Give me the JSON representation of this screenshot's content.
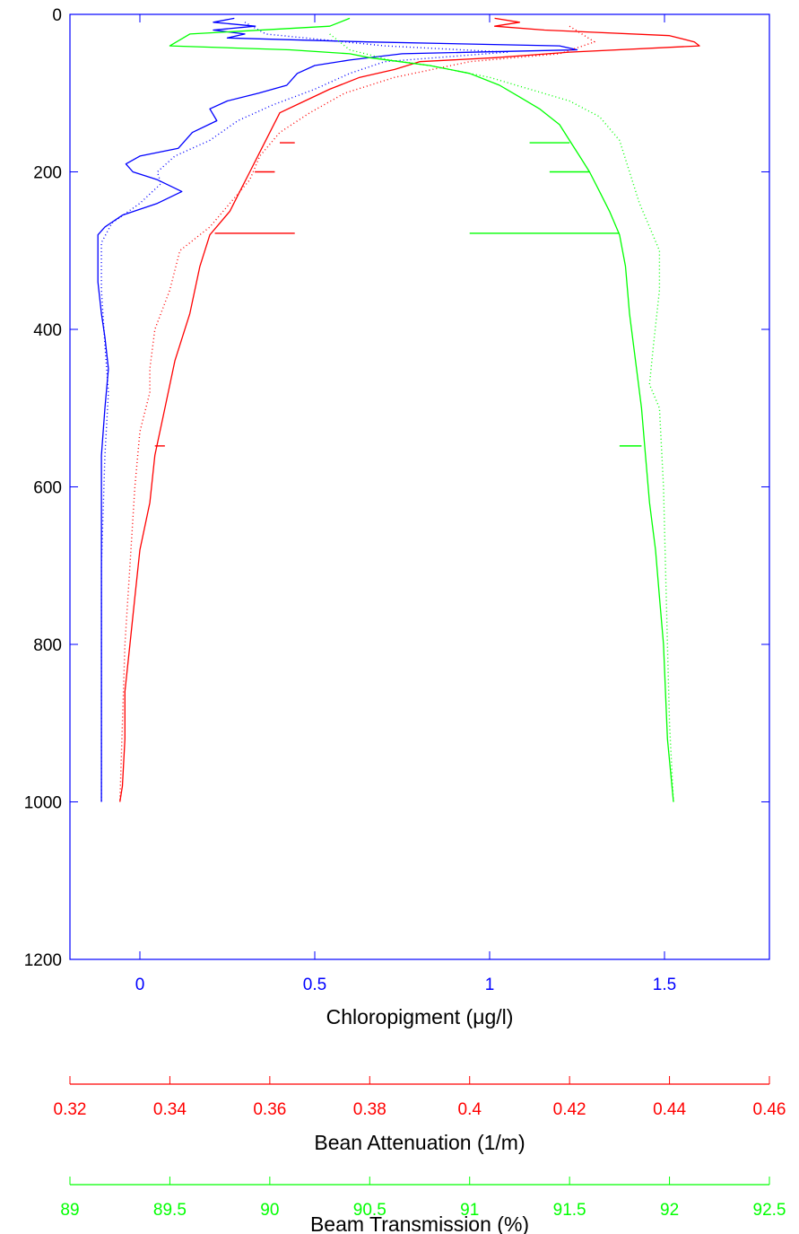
{
  "chart_data": {
    "type": "line",
    "y_axis": {
      "label": "",
      "ticks": [
        0,
        200,
        400,
        600,
        800,
        1000,
        1200
      ],
      "tick_labels": [
        "0",
        "200",
        "400",
        "600",
        "800",
        "1000",
        "1200"
      ],
      "range": [
        0,
        1200
      ],
      "reversed": true
    },
    "x_axes": [
      {
        "id": "chloropigment",
        "title": "Chloropigment (μg/l)",
        "color": "#0000ff",
        "range": [
          -0.2,
          1.8
        ],
        "ticks": [
          0,
          0.5,
          1,
          1.5
        ],
        "tick_labels": [
          "0",
          "0.5",
          "1",
          "1.5"
        ]
      },
      {
        "id": "attenuation",
        "title": "Bean Attenuation (1/m)",
        "color": "#ff0000",
        "range": [
          0.32,
          0.46
        ],
        "ticks": [
          0.32,
          0.34,
          0.36,
          0.38,
          0.4,
          0.42,
          0.44,
          0.46
        ],
        "tick_labels": [
          "0.32",
          "0.34",
          "0.36",
          "0.38",
          "0.4",
          "0.42",
          "0.44",
          "0.46"
        ]
      },
      {
        "id": "transmission",
        "title": "Beam Transmission (%)",
        "color": "#00ff00",
        "range": [
          89,
          92.5
        ],
        "ticks": [
          89,
          89.5,
          90,
          90.5,
          91,
          91.5,
          92,
          92.5
        ],
        "tick_labels": [
          "89",
          "89.5",
          "90",
          "90.5",
          "91",
          "91.5",
          "92",
          "92.5"
        ]
      }
    ],
    "series": [
      {
        "axis": "chloropigment",
        "color": "#0000ff",
        "style": "solid",
        "points": [
          [
            0.27,
            5
          ],
          [
            0.21,
            10
          ],
          [
            0.33,
            15
          ],
          [
            0.21,
            20
          ],
          [
            0.3,
            25
          ],
          [
            0.25,
            30
          ],
          [
            0.65,
            35
          ],
          [
            1.2,
            40
          ],
          [
            1.25,
            45
          ],
          [
            0.75,
            50
          ],
          [
            0.6,
            58
          ],
          [
            0.5,
            65
          ],
          [
            0.45,
            75
          ],
          [
            0.42,
            90
          ],
          [
            0.34,
            100
          ],
          [
            0.25,
            110
          ],
          [
            0.2,
            120
          ],
          [
            0.22,
            135
          ],
          [
            0.15,
            150
          ],
          [
            0.11,
            170
          ],
          [
            0.0,
            180
          ],
          [
            -0.04,
            190
          ],
          [
            -0.02,
            200
          ],
          [
            0.05,
            210
          ],
          [
            0.12,
            225
          ],
          [
            0.05,
            240
          ],
          [
            -0.05,
            255
          ],
          [
            -0.1,
            270
          ],
          [
            -0.12,
            280
          ],
          [
            -0.12,
            300
          ],
          [
            -0.12,
            340
          ],
          [
            -0.11,
            380
          ],
          [
            -0.1,
            410
          ],
          [
            -0.09,
            450
          ],
          [
            -0.1,
            500
          ],
          [
            -0.11,
            560
          ],
          [
            -0.11,
            650
          ],
          [
            -0.11,
            750
          ],
          [
            -0.11,
            850
          ],
          [
            -0.11,
            950
          ],
          [
            -0.11,
            1000
          ]
        ]
      },
      {
        "axis": "chloropigment",
        "color": "#0000ff",
        "style": "dotted",
        "points": [
          [
            0.3,
            10
          ],
          [
            0.36,
            25
          ],
          [
            0.7,
            40
          ],
          [
            1.05,
            48
          ],
          [
            0.7,
            60
          ],
          [
            0.6,
            75
          ],
          [
            0.5,
            95
          ],
          [
            0.38,
            115
          ],
          [
            0.28,
            135
          ],
          [
            0.2,
            160
          ],
          [
            0.1,
            180
          ],
          [
            0.05,
            200
          ],
          [
            0.06,
            215
          ],
          [
            0.0,
            240
          ],
          [
            -0.08,
            265
          ],
          [
            -0.11,
            290
          ],
          [
            -0.11,
            350
          ],
          [
            -0.1,
            420
          ],
          [
            -0.09,
            480
          ],
          [
            -0.1,
            560
          ],
          [
            -0.11,
            700
          ],
          [
            -0.11,
            900
          ],
          [
            -0.11,
            1000
          ]
        ]
      },
      {
        "axis": "attenuation",
        "color": "#ff0000",
        "style": "solid",
        "points": [
          [
            0.405,
            5
          ],
          [
            0.41,
            10
          ],
          [
            0.405,
            15
          ],
          [
            0.415,
            20
          ],
          [
            0.44,
            27
          ],
          [
            0.445,
            35
          ],
          [
            0.446,
            40
          ],
          [
            0.42,
            48
          ],
          [
            0.405,
            55
          ],
          [
            0.39,
            60
          ],
          [
            0.385,
            70
          ],
          [
            0.378,
            80
          ],
          [
            0.372,
            95
          ],
          [
            0.367,
            110
          ],
          [
            0.362,
            125
          ],
          [
            0.36,
            150
          ],
          [
            0.358,
            175
          ],
          [
            0.356,
            200
          ],
          [
            0.354,
            225
          ],
          [
            0.352,
            250
          ],
          [
            0.348,
            280
          ],
          [
            0.346,
            320
          ],
          [
            0.344,
            380
          ],
          [
            0.341,
            440
          ],
          [
            0.339,
            500
          ],
          [
            0.337,
            560
          ],
          [
            0.336,
            620
          ],
          [
            0.334,
            680
          ],
          [
            0.333,
            740
          ],
          [
            0.332,
            800
          ],
          [
            0.331,
            860
          ],
          [
            0.331,
            920
          ],
          [
            0.3305,
            980
          ],
          [
            0.33,
            1000
          ]
        ]
      },
      {
        "axis": "attenuation",
        "color": "#ff0000",
        "style": "dotted",
        "points": [
          [
            0.42,
            15
          ],
          [
            0.425,
            35
          ],
          [
            0.418,
            50
          ],
          [
            0.4,
            60
          ],
          [
            0.385,
            80
          ],
          [
            0.375,
            100
          ],
          [
            0.368,
            125
          ],
          [
            0.362,
            150
          ],
          [
            0.358,
            180
          ],
          [
            0.356,
            210
          ],
          [
            0.352,
            240
          ],
          [
            0.348,
            270
          ],
          [
            0.342,
            300
          ],
          [
            0.34,
            350
          ],
          [
            0.337,
            400
          ],
          [
            0.336,
            450
          ],
          [
            0.336,
            480
          ],
          [
            0.334,
            530
          ],
          [
            0.333,
            600
          ],
          [
            0.332,
            700
          ],
          [
            0.331,
            800
          ],
          [
            0.3305,
            900
          ],
          [
            0.33,
            1000
          ]
        ]
      },
      {
        "axis": "transmission",
        "color": "#00ff00",
        "style": "solid",
        "points": [
          [
            90.4,
            5
          ],
          [
            90.3,
            15
          ],
          [
            89.6,
            25
          ],
          [
            89.5,
            40
          ],
          [
            90.1,
            45
          ],
          [
            90.4,
            50
          ],
          [
            90.5,
            55
          ],
          [
            90.65,
            60
          ],
          [
            90.8,
            65
          ],
          [
            91.0,
            75
          ],
          [
            91.15,
            90
          ],
          [
            91.25,
            105
          ],
          [
            91.35,
            120
          ],
          [
            91.45,
            140
          ],
          [
            91.5,
            160
          ],
          [
            91.55,
            180
          ],
          [
            91.6,
            200
          ],
          [
            91.65,
            225
          ],
          [
            91.7,
            250
          ],
          [
            91.75,
            280
          ],
          [
            91.78,
            320
          ],
          [
            91.8,
            380
          ],
          [
            91.83,
            440
          ],
          [
            91.86,
            500
          ],
          [
            91.88,
            560
          ],
          [
            91.9,
            620
          ],
          [
            91.93,
            680
          ],
          [
            91.95,
            740
          ],
          [
            91.97,
            800
          ],
          [
            91.98,
            860
          ],
          [
            91.99,
            920
          ],
          [
            92.02,
            1000
          ]
        ]
      },
      {
        "axis": "transmission",
        "color": "#00ff00",
        "style": "dotted",
        "points": [
          [
            90.3,
            25
          ],
          [
            90.4,
            45
          ],
          [
            90.6,
            58
          ],
          [
            90.8,
            65
          ],
          [
            91.1,
            80
          ],
          [
            91.3,
            95
          ],
          [
            91.5,
            110
          ],
          [
            91.65,
            130
          ],
          [
            91.75,
            160
          ],
          [
            91.8,
            200
          ],
          [
            91.85,
            240
          ],
          [
            91.9,
            270
          ],
          [
            91.95,
            300
          ],
          [
            91.95,
            350
          ],
          [
            91.92,
            420
          ],
          [
            91.9,
            470
          ],
          [
            91.95,
            500
          ],
          [
            91.97,
            600
          ],
          [
            91.98,
            700
          ],
          [
            91.99,
            800
          ],
          [
            92.0,
            900
          ],
          [
            92.02,
            1000
          ]
        ]
      }
    ],
    "spikes": [
      {
        "axis": "attenuation",
        "depth": 163,
        "from": 0.362,
        "to": 0.365
      },
      {
        "axis": "attenuation",
        "depth": 200,
        "from": 0.357,
        "to": 0.361
      },
      {
        "axis": "attenuation",
        "depth": 278,
        "from": 0.349,
        "to": 0.365
      },
      {
        "axis": "attenuation",
        "depth": 548,
        "from": 0.337,
        "to": 0.339
      },
      {
        "axis": "transmission",
        "depth": 163,
        "from": 91.5,
        "to": 91.3
      },
      {
        "axis": "transmission",
        "depth": 200,
        "from": 91.6,
        "to": 91.4
      },
      {
        "axis": "transmission",
        "depth": 278,
        "from": 91.75,
        "to": 91.0
      },
      {
        "axis": "transmission",
        "depth": 548,
        "from": 91.86,
        "to": 91.75
      }
    ]
  }
}
